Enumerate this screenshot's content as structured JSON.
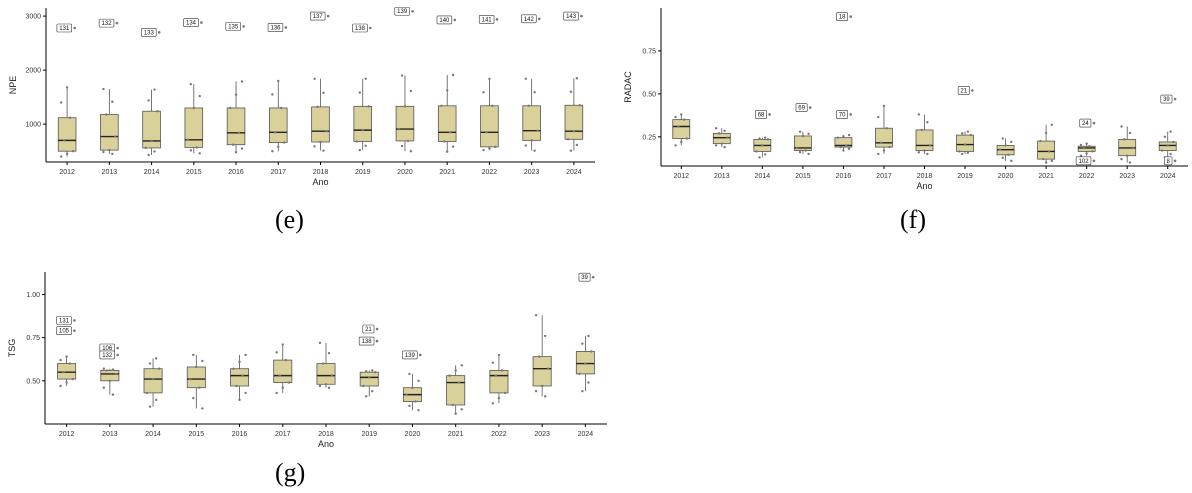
{
  "captions": {
    "e": "(e)",
    "f": "(f)",
    "g": "(g)"
  },
  "chart_data": [
    {
      "type": "box",
      "panel": "e",
      "xlabel": "Ano",
      "ylabel": "NPE",
      "ylim": [
        300,
        3150
      ],
      "yticks": [
        1000,
        2000,
        3000
      ],
      "categories": [
        "2012",
        "2013",
        "2014",
        "2015",
        "2016",
        "2017",
        "2018",
        "2019",
        "2020",
        "2021",
        "2022",
        "2023",
        "2024"
      ],
      "boxes": [
        {
          "min": 400,
          "q1": 500,
          "median": 700,
          "q3": 1120,
          "max": 1680
        },
        {
          "min": 450,
          "q1": 520,
          "median": 770,
          "q3": 1180,
          "max": 1650
        },
        {
          "min": 430,
          "q1": 560,
          "median": 690,
          "q3": 1240,
          "max": 1640
        },
        {
          "min": 460,
          "q1": 570,
          "median": 710,
          "q3": 1300,
          "max": 1740
        },
        {
          "min": 480,
          "q1": 620,
          "median": 840,
          "q3": 1300,
          "max": 1790
        },
        {
          "min": 500,
          "q1": 660,
          "median": 850,
          "q3": 1300,
          "max": 1800
        },
        {
          "min": 510,
          "q1": 670,
          "median": 870,
          "q3": 1320,
          "max": 1840
        },
        {
          "min": 520,
          "q1": 680,
          "median": 890,
          "q3": 1330,
          "max": 1840
        },
        {
          "min": 500,
          "q1": 690,
          "median": 910,
          "q3": 1330,
          "max": 1900
        },
        {
          "min": 490,
          "q1": 680,
          "median": 850,
          "q3": 1340,
          "max": 1910
        },
        {
          "min": 520,
          "q1": 580,
          "median": 850,
          "q3": 1340,
          "max": 1840
        },
        {
          "min": 510,
          "q1": 700,
          "median": 880,
          "q3": 1340,
          "max": 1840
        },
        {
          "min": 510,
          "q1": 720,
          "median": 870,
          "q3": 1350,
          "max": 1850
        }
      ],
      "outliers": [
        {
          "x": "2012",
          "y": 2780,
          "label": "131"
        },
        {
          "x": "2013",
          "y": 2870,
          "label": "132"
        },
        {
          "x": "2014",
          "y": 2700,
          "label": "133"
        },
        {
          "x": "2015",
          "y": 2880,
          "label": "134"
        },
        {
          "x": "2016",
          "y": 2810,
          "label": "135"
        },
        {
          "x": "2017",
          "y": 2790,
          "label": "136"
        },
        {
          "x": "2018",
          "y": 3000,
          "label": "137"
        },
        {
          "x": "2019",
          "y": 2780,
          "label": "138"
        },
        {
          "x": "2020",
          "y": 3090,
          "label": "139"
        },
        {
          "x": "2021",
          "y": 2930,
          "label": "140"
        },
        {
          "x": "2022",
          "y": 2940,
          "label": "141"
        },
        {
          "x": "2023",
          "y": 2950,
          "label": "142"
        },
        {
          "x": "2024",
          "y": 3000,
          "label": "143"
        }
      ]
    },
    {
      "type": "box",
      "panel": "f",
      "xlabel": "Ano",
      "ylabel": "RADAC",
      "ylim": [
        0.08,
        1.0
      ],
      "yticks": [
        0.25,
        0.5,
        0.75
      ],
      "categories": [
        "2012",
        "2013",
        "2014",
        "2015",
        "2016",
        "2017",
        "2018",
        "2019",
        "2020",
        "2021",
        "2022",
        "2023",
        "2024"
      ],
      "boxes": [
        {
          "min": 0.2,
          "q1": 0.24,
          "median": 0.31,
          "q3": 0.35,
          "max": 0.38
        },
        {
          "min": 0.19,
          "q1": 0.21,
          "median": 0.245,
          "q3": 0.27,
          "max": 0.3
        },
        {
          "min": 0.13,
          "q1": 0.165,
          "median": 0.2,
          "q3": 0.235,
          "max": 0.245
        },
        {
          "min": 0.15,
          "q1": 0.17,
          "median": 0.185,
          "q3": 0.255,
          "max": 0.28
        },
        {
          "min": 0.17,
          "q1": 0.19,
          "median": 0.2,
          "q3": 0.245,
          "max": 0.26
        },
        {
          "min": 0.15,
          "q1": 0.19,
          "median": 0.215,
          "q3": 0.3,
          "max": 0.43
        },
        {
          "min": 0.15,
          "q1": 0.17,
          "median": 0.2,
          "q3": 0.29,
          "max": 0.38
        },
        {
          "min": 0.15,
          "q1": 0.165,
          "median": 0.205,
          "q3": 0.26,
          "max": 0.28
        },
        {
          "min": 0.11,
          "q1": 0.145,
          "median": 0.175,
          "q3": 0.2,
          "max": 0.24
        },
        {
          "min": 0.1,
          "q1": 0.12,
          "median": 0.165,
          "q3": 0.225,
          "max": 0.32
        },
        {
          "min": 0.14,
          "q1": 0.165,
          "median": 0.185,
          "q3": 0.195,
          "max": 0.21
        },
        {
          "min": 0.1,
          "q1": 0.14,
          "median": 0.185,
          "q3": 0.235,
          "max": 0.31
        },
        {
          "min": 0.13,
          "q1": 0.17,
          "median": 0.2,
          "q3": 0.22,
          "max": 0.28
        }
      ],
      "outliers": [
        {
          "x": "2014",
          "y": 0.38,
          "label": "68"
        },
        {
          "x": "2015",
          "y": 0.42,
          "label": "69"
        },
        {
          "x": "2016",
          "y": 0.38,
          "label": "70"
        },
        {
          "x": "2016",
          "y": 0.95,
          "label": "18"
        },
        {
          "x": "2019",
          "y": 0.52,
          "label": "21"
        },
        {
          "x": "2022",
          "y": 0.11,
          "label": "102"
        },
        {
          "x": "2022",
          "y": 0.33,
          "label": "24"
        },
        {
          "x": "2024",
          "y": 0.47,
          "label": "39"
        },
        {
          "x": "2024",
          "y": 0.11,
          "label": "8"
        }
      ]
    },
    {
      "type": "box",
      "panel": "g",
      "xlabel": "Ano",
      "ylabel": "TSG",
      "ylim": [
        0.25,
        1.13
      ],
      "yticks": [
        0.5,
        0.75,
        1.0
      ],
      "categories": [
        "2012",
        "2013",
        "2014",
        "2015",
        "2016",
        "2017",
        "2018",
        "2019",
        "2020",
        "2021",
        "2022",
        "2023",
        "2024"
      ],
      "boxes": [
        {
          "min": 0.47,
          "q1": 0.51,
          "median": 0.55,
          "q3": 0.6,
          "max": 0.64
        },
        {
          "min": 0.42,
          "q1": 0.5,
          "median": 0.54,
          "q3": 0.56,
          "max": 0.57
        },
        {
          "min": 0.35,
          "q1": 0.43,
          "median": 0.51,
          "q3": 0.57,
          "max": 0.63
        },
        {
          "min": 0.34,
          "q1": 0.46,
          "median": 0.51,
          "q3": 0.58,
          "max": 0.65
        },
        {
          "min": 0.39,
          "q1": 0.47,
          "median": 0.53,
          "q3": 0.57,
          "max": 0.65
        },
        {
          "min": 0.43,
          "q1": 0.49,
          "median": 0.53,
          "q3": 0.62,
          "max": 0.71
        },
        {
          "min": 0.46,
          "q1": 0.48,
          "median": 0.53,
          "q3": 0.6,
          "max": 0.72
        },
        {
          "min": 0.41,
          "q1": 0.47,
          "median": 0.52,
          "q3": 0.55,
          "max": 0.56
        },
        {
          "min": 0.33,
          "q1": 0.38,
          "median": 0.42,
          "q3": 0.46,
          "max": 0.54
        },
        {
          "min": 0.31,
          "q1": 0.36,
          "median": 0.49,
          "q3": 0.53,
          "max": 0.59
        },
        {
          "min": 0.37,
          "q1": 0.43,
          "median": 0.53,
          "q3": 0.56,
          "max": 0.65
        },
        {
          "min": 0.41,
          "q1": 0.47,
          "median": 0.57,
          "q3": 0.64,
          "max": 0.88
        },
        {
          "min": 0.44,
          "q1": 0.54,
          "median": 0.6,
          "q3": 0.67,
          "max": 0.76
        }
      ],
      "outliers": [
        {
          "x": "2012",
          "y": 0.85,
          "label": "131"
        },
        {
          "x": "2012",
          "y": 0.79,
          "label": "105"
        },
        {
          "x": "2013",
          "y": 0.69,
          "label": "106"
        },
        {
          "x": "2013",
          "y": 0.65,
          "label": "132"
        },
        {
          "x": "2019",
          "y": 0.8,
          "label": "21"
        },
        {
          "x": "2019",
          "y": 0.73,
          "label": "138"
        },
        {
          "x": "2020",
          "y": 0.65,
          "label": "139"
        },
        {
          "x": "2024",
          "y": 1.1,
          "label": "39"
        }
      ]
    }
  ]
}
